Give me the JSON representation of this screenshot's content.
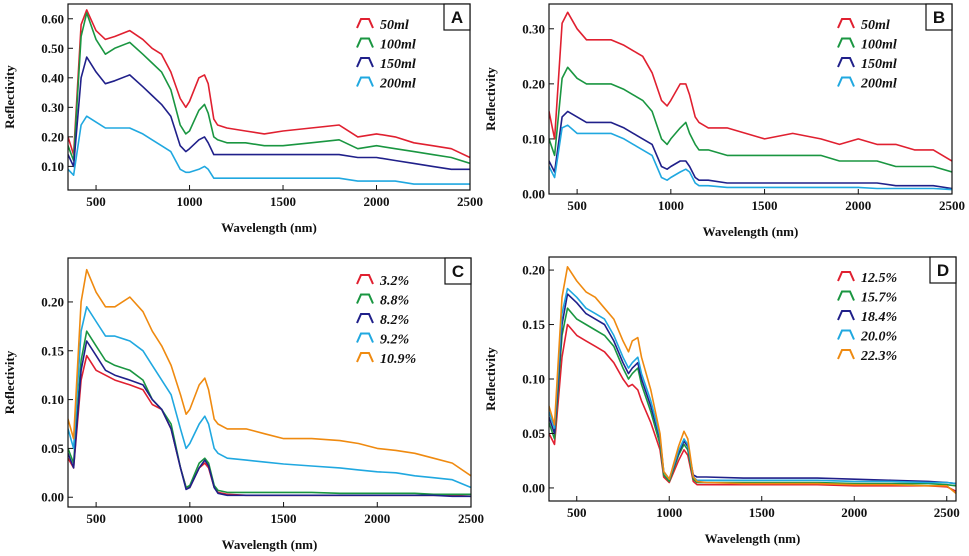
{
  "colors": {
    "red": "#e02030",
    "green": "#1a9641",
    "navy": "#20208a",
    "cyan": "#20a8e0",
    "orange": "#ef8a10"
  },
  "chart_data": [
    {
      "type": "line",
      "panel": "A",
      "xlabel": "Wavelength (nm)",
      "ylabel": "Reflectivity",
      "xlim": [
        350,
        2500
      ],
      "ylim": [
        0.02,
        0.65
      ],
      "xticks": [
        500,
        1000,
        1500,
        2000,
        2500
      ],
      "yticks": [
        0.1,
        0.2,
        0.3,
        0.4,
        0.5,
        0.6
      ],
      "ytick_labels": [
        "0.10",
        "0.20",
        "0.30",
        "0.40",
        "0.50",
        "0.60"
      ],
      "x": [
        350,
        380,
        420,
        450,
        500,
        550,
        600,
        680,
        750,
        800,
        850,
        900,
        950,
        980,
        1000,
        1050,
        1080,
        1100,
        1130,
        1150,
        1200,
        1300,
        1400,
        1500,
        1650,
        1800,
        1900,
        2000,
        2100,
        2200,
        2300,
        2400,
        2500
      ],
      "series": [
        {
          "name": "50ml",
          "color": "#e02030",
          "values": [
            0.2,
            0.14,
            0.58,
            0.63,
            0.56,
            0.53,
            0.54,
            0.56,
            0.53,
            0.5,
            0.48,
            0.42,
            0.33,
            0.3,
            0.32,
            0.4,
            0.41,
            0.38,
            0.26,
            0.24,
            0.23,
            0.22,
            0.21,
            0.22,
            0.23,
            0.24,
            0.2,
            0.21,
            0.2,
            0.18,
            0.17,
            0.16,
            0.13
          ]
        },
        {
          "name": "100ml",
          "color": "#1a9641",
          "values": [
            0.17,
            0.12,
            0.54,
            0.62,
            0.53,
            0.48,
            0.5,
            0.52,
            0.48,
            0.45,
            0.42,
            0.36,
            0.24,
            0.21,
            0.22,
            0.29,
            0.31,
            0.28,
            0.2,
            0.19,
            0.18,
            0.18,
            0.17,
            0.17,
            0.18,
            0.19,
            0.16,
            0.17,
            0.16,
            0.15,
            0.14,
            0.13,
            0.11
          ]
        },
        {
          "name": "150ml",
          "color": "#20208a",
          "values": [
            0.14,
            0.1,
            0.4,
            0.47,
            0.42,
            0.38,
            0.39,
            0.41,
            0.37,
            0.34,
            0.31,
            0.27,
            0.17,
            0.15,
            0.16,
            0.19,
            0.2,
            0.18,
            0.14,
            0.14,
            0.14,
            0.14,
            0.14,
            0.14,
            0.14,
            0.14,
            0.13,
            0.13,
            0.12,
            0.11,
            0.1,
            0.09,
            0.09
          ]
        },
        {
          "name": "200ml",
          "color": "#20a8e0",
          "values": [
            0.09,
            0.07,
            0.24,
            0.27,
            0.25,
            0.23,
            0.23,
            0.23,
            0.21,
            0.19,
            0.17,
            0.15,
            0.09,
            0.08,
            0.08,
            0.09,
            0.1,
            0.09,
            0.06,
            0.06,
            0.06,
            0.06,
            0.06,
            0.06,
            0.06,
            0.06,
            0.05,
            0.05,
            0.05,
            0.04,
            0.04,
            0.04,
            0.04
          ]
        }
      ]
    },
    {
      "type": "line",
      "panel": "B",
      "xlabel": "Wavelength (nm)",
      "ylabel": "Reflectivity",
      "xlim": [
        350,
        2500
      ],
      "ylim": [
        0.0,
        0.345
      ],
      "xticks": [
        500,
        1000,
        1500,
        2000,
        2500
      ],
      "yticks": [
        0.0,
        0.1,
        0.2,
        0.3
      ],
      "ytick_labels": [
        "0.00",
        "0.10",
        "0.20",
        "0.30"
      ],
      "x": [
        350,
        380,
        420,
        450,
        500,
        550,
        600,
        680,
        750,
        800,
        850,
        900,
        950,
        980,
        1000,
        1050,
        1080,
        1100,
        1130,
        1150,
        1200,
        1300,
        1400,
        1500,
        1650,
        1800,
        1900,
        2000,
        2100,
        2200,
        2300,
        2400,
        2500
      ],
      "series": [
        {
          "name": "50ml",
          "color": "#e02030",
          "values": [
            0.15,
            0.1,
            0.31,
            0.33,
            0.3,
            0.28,
            0.28,
            0.28,
            0.27,
            0.26,
            0.25,
            0.22,
            0.17,
            0.16,
            0.17,
            0.2,
            0.2,
            0.18,
            0.14,
            0.13,
            0.12,
            0.12,
            0.11,
            0.1,
            0.11,
            0.1,
            0.09,
            0.1,
            0.09,
            0.09,
            0.08,
            0.08,
            0.06
          ]
        },
        {
          "name": "100ml",
          "color": "#1a9641",
          "values": [
            0.1,
            0.07,
            0.21,
            0.23,
            0.21,
            0.2,
            0.2,
            0.2,
            0.19,
            0.18,
            0.17,
            0.15,
            0.1,
            0.09,
            0.1,
            0.12,
            0.13,
            0.11,
            0.09,
            0.08,
            0.08,
            0.07,
            0.07,
            0.07,
            0.07,
            0.07,
            0.06,
            0.06,
            0.06,
            0.05,
            0.05,
            0.05,
            0.04
          ]
        },
        {
          "name": "150ml",
          "color": "#20208a",
          "values": [
            0.06,
            0.04,
            0.14,
            0.15,
            0.14,
            0.13,
            0.13,
            0.13,
            0.12,
            0.11,
            0.1,
            0.09,
            0.05,
            0.045,
            0.05,
            0.06,
            0.06,
            0.05,
            0.03,
            0.025,
            0.025,
            0.02,
            0.02,
            0.02,
            0.02,
            0.02,
            0.02,
            0.02,
            0.02,
            0.015,
            0.015,
            0.015,
            0.01
          ]
        },
        {
          "name": "200ml",
          "color": "#20a8e0",
          "values": [
            0.05,
            0.03,
            0.12,
            0.125,
            0.11,
            0.11,
            0.11,
            0.11,
            0.1,
            0.09,
            0.08,
            0.07,
            0.03,
            0.025,
            0.03,
            0.04,
            0.045,
            0.04,
            0.02,
            0.015,
            0.015,
            0.012,
            0.012,
            0.012,
            0.012,
            0.012,
            0.012,
            0.012,
            0.01,
            0.01,
            0.01,
            0.01,
            0.008
          ]
        }
      ]
    },
    {
      "type": "line",
      "panel": "C",
      "xlabel": "Wavelength (nm)",
      "ylabel": "Reflectivity",
      "xlim": [
        350,
        2500
      ],
      "ylim": [
        -0.01,
        0.245
      ],
      "xticks": [
        500,
        1000,
        1500,
        2000,
        2500
      ],
      "yticks": [
        0.0,
        0.05,
        0.1,
        0.15,
        0.2
      ],
      "ytick_labels": [
        "0.00",
        "0.05",
        "0.10",
        "0.15",
        "0.20"
      ],
      "x": [
        350,
        380,
        420,
        450,
        500,
        550,
        600,
        680,
        750,
        800,
        850,
        900,
        950,
        980,
        1000,
        1050,
        1080,
        1100,
        1130,
        1150,
        1200,
        1300,
        1400,
        1500,
        1650,
        1800,
        1900,
        2000,
        2100,
        2200,
        2300,
        2400,
        2500
      ],
      "series": [
        {
          "name": "3.2%",
          "color": "#e02030",
          "values": [
            0.04,
            0.03,
            0.12,
            0.145,
            0.13,
            0.125,
            0.12,
            0.115,
            0.11,
            0.095,
            0.09,
            0.07,
            0.03,
            0.01,
            0.01,
            0.03,
            0.035,
            0.03,
            0.01,
            0.005,
            0.003,
            0.002,
            0.002,
            0.002,
            0.002,
            0.002,
            0.002,
            0.002,
            0.002,
            0.002,
            0.002,
            0.002,
            0.001
          ]
        },
        {
          "name": "8.8%",
          "color": "#1a9641",
          "values": [
            0.05,
            0.035,
            0.14,
            0.17,
            0.155,
            0.14,
            0.135,
            0.13,
            0.12,
            0.1,
            0.09,
            0.075,
            0.03,
            0.01,
            0.012,
            0.035,
            0.04,
            0.035,
            0.012,
            0.007,
            0.005,
            0.005,
            0.005,
            0.005,
            0.005,
            0.004,
            0.004,
            0.004,
            0.004,
            0.004,
            0.003,
            0.003,
            0.003
          ]
        },
        {
          "name": "8.2%",
          "color": "#20208a",
          "values": [
            0.045,
            0.03,
            0.13,
            0.16,
            0.145,
            0.13,
            0.125,
            0.12,
            0.115,
            0.1,
            0.09,
            0.07,
            0.03,
            0.008,
            0.01,
            0.03,
            0.038,
            0.032,
            0.01,
            0.004,
            0.002,
            0.002,
            0.002,
            0.002,
            0.002,
            0.002,
            0.002,
            0.002,
            0.002,
            0.002,
            0.002,
            0.001,
            0.001
          ]
        },
        {
          "name": "9.2%",
          "color": "#20a8e0",
          "values": [
            0.07,
            0.05,
            0.17,
            0.195,
            0.18,
            0.165,
            0.165,
            0.16,
            0.15,
            0.135,
            0.12,
            0.105,
            0.07,
            0.05,
            0.055,
            0.075,
            0.083,
            0.075,
            0.05,
            0.045,
            0.04,
            0.038,
            0.036,
            0.034,
            0.032,
            0.03,
            0.028,
            0.026,
            0.025,
            0.022,
            0.02,
            0.018,
            0.01
          ]
        },
        {
          "name": "10.9%",
          "color": "#ef8a10",
          "values": [
            0.08,
            0.06,
            0.2,
            0.233,
            0.21,
            0.195,
            0.195,
            0.205,
            0.19,
            0.17,
            0.155,
            0.135,
            0.105,
            0.085,
            0.09,
            0.115,
            0.122,
            0.11,
            0.08,
            0.075,
            0.07,
            0.07,
            0.065,
            0.06,
            0.06,
            0.058,
            0.055,
            0.05,
            0.048,
            0.045,
            0.04,
            0.035,
            0.022
          ]
        }
      ]
    },
    {
      "type": "line",
      "panel": "D",
      "xlabel": "Wavelength (nm)",
      "ylabel": "Reflectivity",
      "xlim": [
        350,
        2550
      ],
      "ylim": [
        -0.012,
        0.212
      ],
      "xticks": [
        500,
        1000,
        1500,
        2000,
        2500
      ],
      "yticks": [
        0.0,
        0.05,
        0.1,
        0.15,
        0.2
      ],
      "ytick_labels": [
        "0.00",
        "0.05",
        "0.10",
        "0.15",
        "0.20"
      ],
      "x": [
        350,
        380,
        420,
        450,
        500,
        550,
        600,
        650,
        700,
        750,
        780,
        800,
        830,
        850,
        900,
        950,
        970,
        1000,
        1050,
        1080,
        1100,
        1130,
        1150,
        1200,
        1400,
        1600,
        1800,
        2000,
        2200,
        2400,
        2500,
        2550
      ],
      "series": [
        {
          "name": "12.5%",
          "color": "#e02030",
          "values": [
            0.05,
            0.04,
            0.12,
            0.15,
            0.14,
            0.135,
            0.13,
            0.125,
            0.115,
            0.1,
            0.093,
            0.095,
            0.09,
            0.08,
            0.06,
            0.035,
            0.01,
            0.005,
            0.025,
            0.035,
            0.03,
            0.006,
            0.003,
            0.003,
            0.003,
            0.003,
            0.003,
            0.002,
            0.002,
            0.002,
            0.001,
            -0.003
          ]
        },
        {
          "name": "15.7%",
          "color": "#1a9641",
          "values": [
            0.06,
            0.045,
            0.14,
            0.165,
            0.155,
            0.15,
            0.145,
            0.14,
            0.13,
            0.11,
            0.1,
            0.105,
            0.11,
            0.095,
            0.07,
            0.04,
            0.012,
            0.006,
            0.03,
            0.04,
            0.035,
            0.008,
            0.005,
            0.005,
            0.005,
            0.005,
            0.005,
            0.004,
            0.004,
            0.004,
            0.003,
            0.002
          ]
        },
        {
          "name": "18.4%",
          "color": "#20208a",
          "values": [
            0.065,
            0.05,
            0.15,
            0.178,
            0.17,
            0.16,
            0.155,
            0.15,
            0.135,
            0.115,
            0.105,
            0.11,
            0.115,
            0.1,
            0.075,
            0.045,
            0.015,
            0.008,
            0.032,
            0.043,
            0.038,
            0.012,
            0.01,
            0.01,
            0.009,
            0.009,
            0.009,
            0.008,
            0.007,
            0.006,
            0.005,
            0.004
          ]
        },
        {
          "name": "20.0%",
          "color": "#20a8e0",
          "values": [
            0.07,
            0.055,
            0.16,
            0.183,
            0.175,
            0.165,
            0.16,
            0.155,
            0.14,
            0.12,
            0.11,
            0.115,
            0.12,
            0.105,
            0.08,
            0.047,
            0.015,
            0.008,
            0.034,
            0.045,
            0.04,
            0.01,
            0.007,
            0.007,
            0.007,
            0.007,
            0.007,
            0.006,
            0.006,
            0.005,
            0.005,
            0.004
          ]
        },
        {
          "name": "22.3%",
          "color": "#ef8a10",
          "values": [
            0.075,
            0.058,
            0.175,
            0.203,
            0.19,
            0.18,
            0.175,
            0.165,
            0.155,
            0.135,
            0.125,
            0.135,
            0.138,
            0.12,
            0.09,
            0.05,
            0.015,
            0.008,
            0.038,
            0.052,
            0.045,
            0.01,
            0.006,
            0.005,
            0.004,
            0.004,
            0.004,
            0.003,
            0.003,
            0.002,
            0.002,
            -0.005
          ]
        }
      ]
    }
  ]
}
